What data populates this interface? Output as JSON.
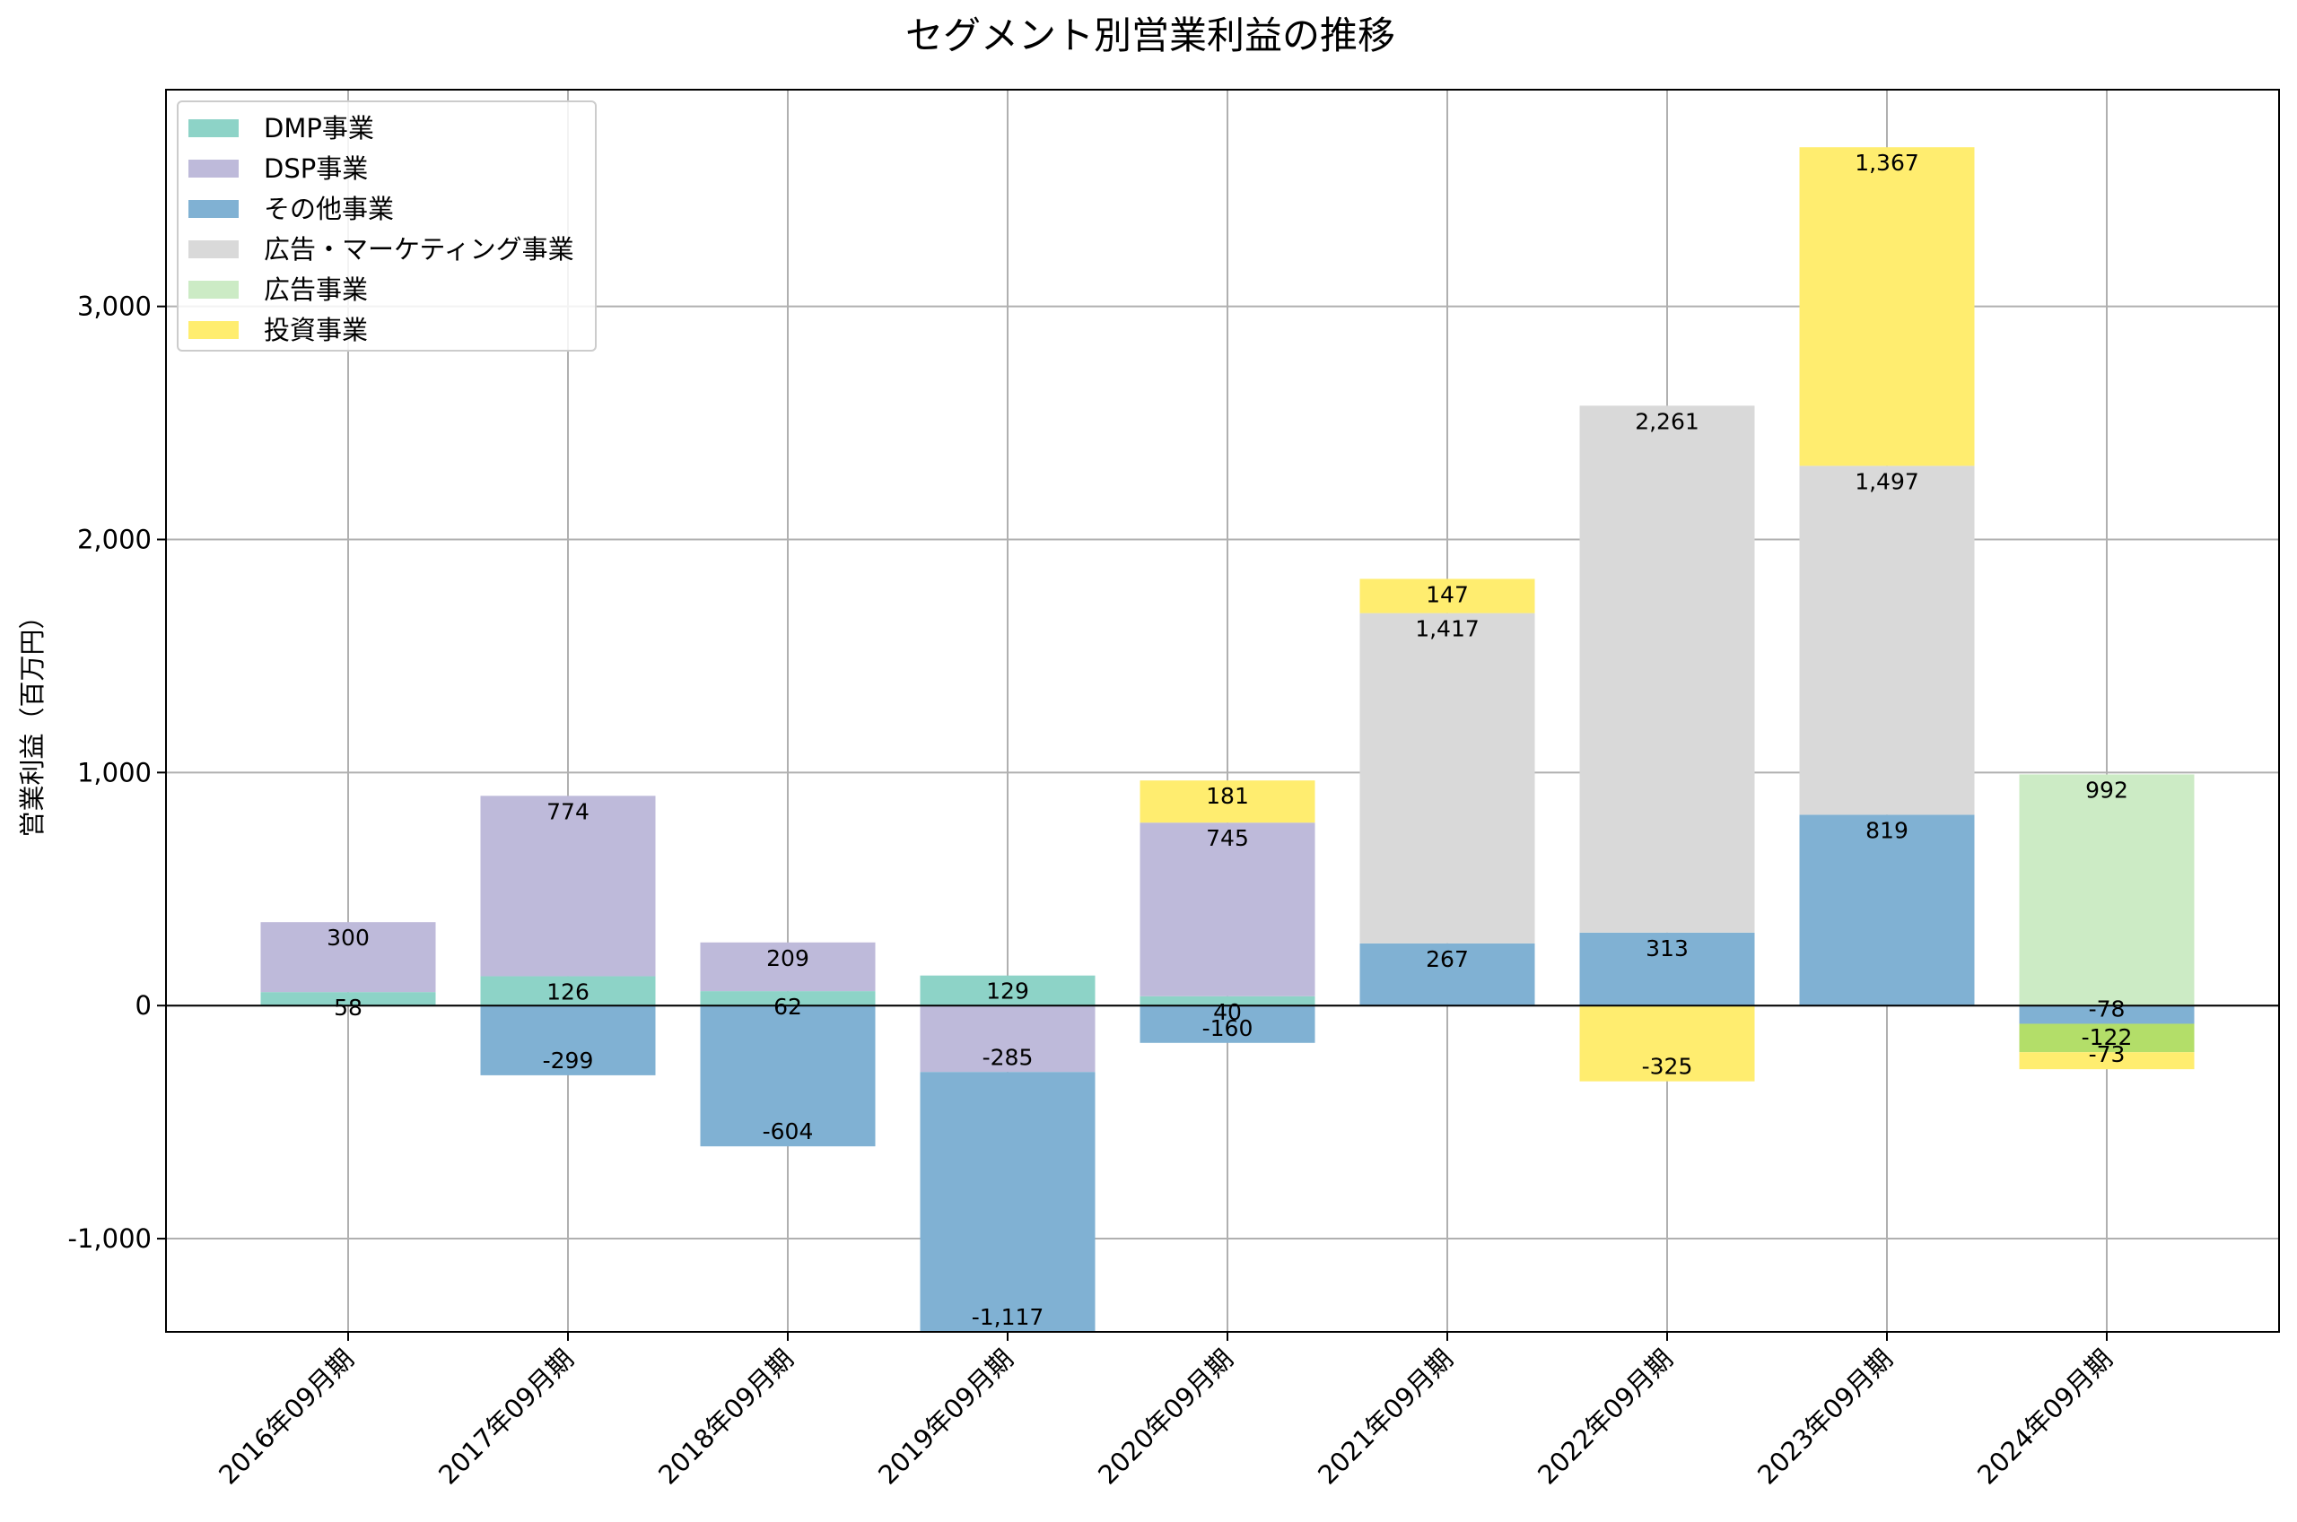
{
  "chart_data": {
    "type": "bar",
    "stacked": true,
    "title": "セグメント別営業利益の推移",
    "xlabel": "",
    "ylabel": "営業利益（百万円）",
    "ylim": [
      -1400,
      3930
    ],
    "yticks": [
      -1000,
      0,
      1000,
      2000,
      3000
    ],
    "ytick_labels": [
      "-1,000",
      "0",
      "1,000",
      "2,000",
      "3,000"
    ],
    "grid": true,
    "legend_position": "top-left",
    "categories": [
      "2016年09月期",
      "2017年09月期",
      "2018年09月期",
      "2019年09月期",
      "2020年09月期",
      "2021年09月期",
      "2022年09月期",
      "2023年09月期",
      "2024年09月期"
    ],
    "series": [
      {
        "name": "DMP事業",
        "color": "#8dd3c7",
        "values": [
          58,
          126,
          62,
          129,
          40,
          null,
          null,
          null,
          null
        ]
      },
      {
        "name": "DSP事業",
        "color": "#bebada",
        "values": [
          300,
          774,
          209,
          -285,
          745,
          null,
          null,
          null,
          null
        ]
      },
      {
        "name": "その他事業",
        "color": "#80b1d3",
        "values": [
          null,
          -299,
          -604,
          -1117,
          -160,
          267,
          313,
          819,
          -78
        ]
      },
      {
        "name": "広告・マーケティング事業",
        "color": "#d9d9d9",
        "values": [
          null,
          null,
          null,
          null,
          null,
          1417,
          2261,
          1497,
          null
        ]
      },
      {
        "name": "広告事業",
        "color": "#ccebc5",
        "values": [
          null,
          null,
          null,
          null,
          null,
          null,
          null,
          null,
          992
        ]
      },
      {
        "name": "",
        "color": "#b3de69",
        "values": [
          null,
          null,
          null,
          null,
          null,
          null,
          null,
          null,
          -122
        ]
      },
      {
        "name": "投資事業",
        "color": "#ffed6f",
        "values": [
          null,
          null,
          null,
          null,
          181,
          147,
          -325,
          1367,
          -73
        ]
      }
    ]
  }
}
